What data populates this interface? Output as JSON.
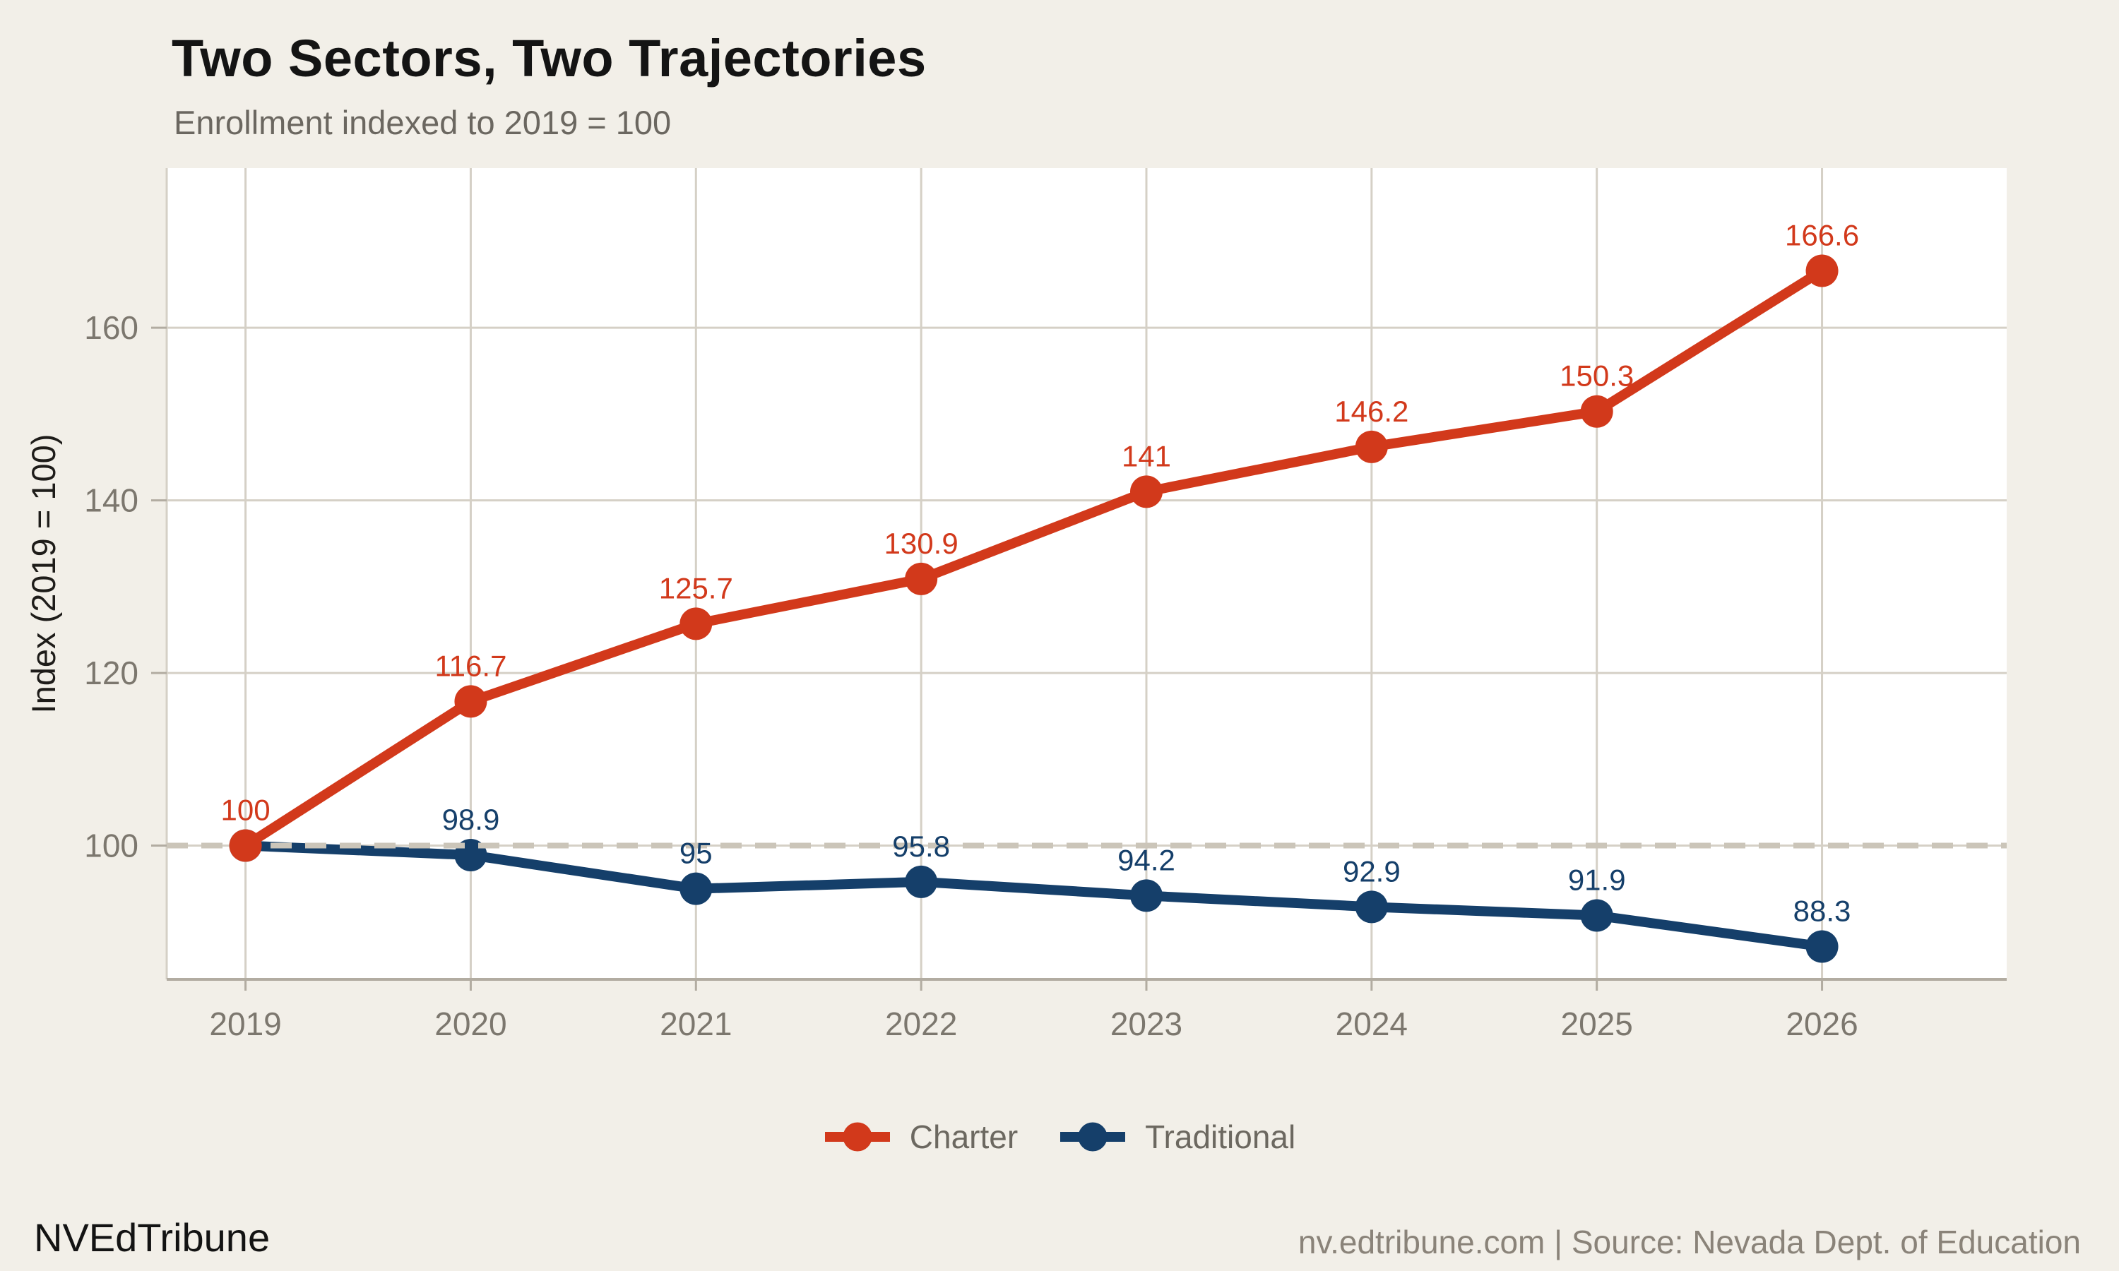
{
  "header": {
    "title": "Two Sectors, Two Trajectories",
    "subtitle": "Enrollment indexed to 2019 = 100"
  },
  "chart_data": {
    "type": "line",
    "title": "Two Sectors, Two Trajectories",
    "subtitle": "Enrollment indexed to 2019 = 100",
    "x": [
      2019,
      2020,
      2021,
      2022,
      2023,
      2024,
      2025,
      2026
    ],
    "xticks": [
      "2019",
      "2020",
      "2021",
      "2022",
      "2023",
      "2024",
      "2025",
      "2026"
    ],
    "series": [
      {
        "name": "Traditional",
        "color": "#153F6A",
        "values": [
          100,
          98.9,
          95,
          95.8,
          94.2,
          92.9,
          91.9,
          88.3
        ],
        "labels": [
          null,
          "98.9",
          "95",
          "95.8",
          "94.2",
          "92.9",
          "91.9",
          "88.3"
        ]
      },
      {
        "name": "Charter",
        "color": "#D2391B",
        "values": [
          100,
          116.7,
          125.7,
          130.9,
          141,
          146.2,
          150.3,
          166.6
        ],
        "labels": [
          "100",
          "116.7",
          "125.7",
          "130.9",
          "141",
          "146.2",
          "150.3",
          "166.6"
        ]
      }
    ],
    "xlabel": "",
    "ylabel": "Index (2019 = 100)",
    "yticks": [
      100,
      120,
      140,
      160
    ],
    "ylim": [
      84.5,
      178.5
    ],
    "xlim": [
      2018.65,
      2026.82
    ],
    "grid": true,
    "reference_line": {
      "y": 100,
      "style": "dashed"
    },
    "legend": {
      "position": "bottom-center",
      "entries": [
        "Charter",
        "Traditional"
      ]
    }
  },
  "footer": {
    "brand": "NVEdTribune",
    "source": "nv.edtribune.com | Source: Nevada Dept. of Education"
  },
  "colors": {
    "background": "#F2EFE8",
    "plot_background": "#FFFFFF",
    "grid": "#D5D0C6",
    "spine": "#B2ACA1",
    "reference_dash": "#CBC5B9",
    "tick_label": "#7C776E",
    "axis_label": "#1E1C19",
    "charter": "#D2391B",
    "traditional": "#153F6A"
  }
}
